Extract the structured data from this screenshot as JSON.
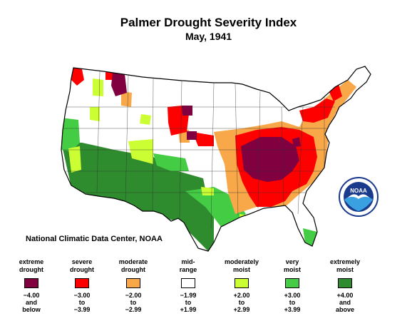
{
  "header": {
    "title": "Palmer Drought Severity Index",
    "subtitle": "May, 1941"
  },
  "credit": "National Climatic Data Center, NOAA",
  "logo": {
    "text": "NOAA",
    "icon": "noaa-seagull-logo-icon"
  },
  "legend": [
    {
      "id": "extreme-drought",
      "line1": "extreme",
      "line2": "drought",
      "color": "#800040",
      "range1": "−4.00",
      "range2": "and",
      "range3": "below"
    },
    {
      "id": "severe-drought",
      "line1": "severe",
      "line2": "drought",
      "color": "#ff0000",
      "range1": "−3.00",
      "range2": "to",
      "range3": "−3.99"
    },
    {
      "id": "moderate-drought",
      "line1": "moderate",
      "line2": "drought",
      "color": "#f8a848",
      "range1": "−2.00",
      "range2": "to",
      "range3": "−2.99"
    },
    {
      "id": "mid-range",
      "line1": "mid-",
      "line2": "range",
      "color": "#ffffff",
      "range1": "−1.99",
      "range2": "to",
      "range3": "+1.99"
    },
    {
      "id": "moderately-moist",
      "line1": "moderately",
      "line2": "moist",
      "color": "#ccff33",
      "range1": "+2.00",
      "range2": "to",
      "range3": "+2.99"
    },
    {
      "id": "very-moist",
      "line1": "very",
      "line2": "moist",
      "color": "#44cc44",
      "range1": "+3.00",
      "range2": "to",
      "range3": "+3.99"
    },
    {
      "id": "extremely-moist",
      "line1": "extremely",
      "line2": "moist",
      "color": "#2e8b2e",
      "range1": "+4.00",
      "range2": "and",
      "range3": "above"
    }
  ]
}
